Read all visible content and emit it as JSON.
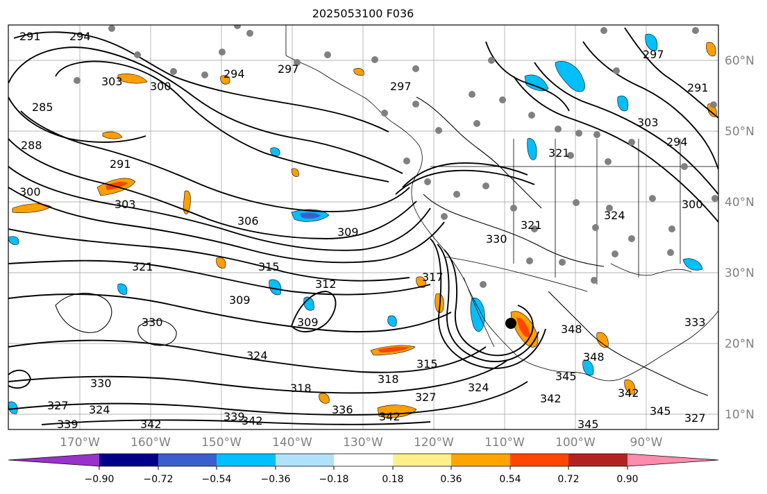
{
  "title": "2025053100 F036",
  "map": {
    "lat_labels": [
      "60°N",
      "50°N",
      "40°N",
      "30°N",
      "20°N",
      "10°N"
    ],
    "lon_labels": [
      "170°W",
      "160°W",
      "150°W",
      "140°W",
      "130°W",
      "120°W",
      "110°W",
      "100°W",
      "90°W"
    ],
    "contour_labels": [
      "291",
      "294",
      "303",
      "300",
      "294",
      "297",
      "297",
      "285",
      "288",
      "291",
      "300",
      "303",
      "306",
      "309",
      "315",
      "321",
      "309",
      "312",
      "317",
      "330",
      "309",
      "324",
      "318",
      "315",
      "318",
      "324",
      "327",
      "330",
      "324",
      "327",
      "339",
      "342",
      "342",
      "339",
      "336",
      "342",
      "345",
      "342",
      "345",
      "342",
      "345",
      "348",
      "348",
      "333",
      "327",
      "303",
      "291",
      "294",
      "321",
      "324",
      "330",
      "321",
      "300",
      "297"
    ],
    "colors": {
      "contour": "#000000",
      "positive_fill": "#ff9f00",
      "negative_fill": "#00bfff",
      "grid": "#9a9a9a",
      "station_marker": "#808080"
    }
  },
  "colorbar": {
    "tick_labels": [
      "−0.90",
      "−0.72",
      "−0.54",
      "−0.36",
      "−0.18",
      "0.18",
      "0.36",
      "0.54",
      "0.72",
      "0.90"
    ],
    "colors": [
      "#9932cc",
      "#00008b",
      "#3a5fcd",
      "#00bfff",
      "#b0e2ff",
      "#ffffff",
      "#fff08a",
      "#ffa500",
      "#ff4500",
      "#b22222",
      "#ff8cae"
    ]
  }
}
